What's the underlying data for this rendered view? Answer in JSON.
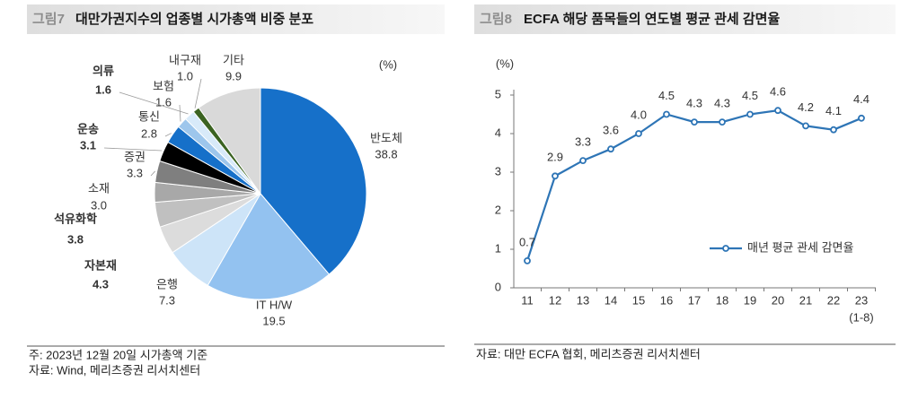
{
  "chart_data": [
    {
      "type": "pie",
      "label": "그림7",
      "title": "대만가권지수의 업종별 시가총액 비중 분포",
      "unit": "(%)",
      "categories": [
        "반도체",
        "IT H/W",
        "은행",
        "자본재",
        "석유화학",
        "소재",
        "증권",
        "운송",
        "통신",
        "보험",
        "의류",
        "내구재",
        "기타"
      ],
      "values": [
        38.8,
        19.5,
        7.3,
        4.3,
        3.8,
        3.0,
        3.3,
        3.1,
        2.8,
        1.6,
        1.6,
        1.0,
        9.9
      ],
      "value_labels": [
        "38.8",
        "19.5",
        "7.3",
        "4.3",
        "3.8",
        "3.0",
        "3.3",
        "3.1",
        "2.8",
        "1.6",
        "1.6",
        "1.0",
        "9.9"
      ],
      "colors": [
        "#1670c9",
        "#93c2f0",
        "#cde4f8",
        "#dcdcdc",
        "#c0c0c0",
        "#a8a8a8",
        "#7f7f7f",
        "#000000",
        "#1670c9",
        "#9dc6ec",
        "#d8eaf9",
        "#3b6321",
        "#d9d9d9"
      ],
      "notes": [
        "주: 2023년 12월 20일 시가총액 기준",
        "자료: Wind, 메리츠증권 리서치센터"
      ]
    },
    {
      "type": "line",
      "label": "그림8",
      "title": "ECFA 해당 품목들의 연도별 평균 관세 감면율",
      "y_label": "(%)",
      "categories": [
        "11",
        "12",
        "13",
        "14",
        "15",
        "16",
        "17",
        "18",
        "19",
        "20",
        "21",
        "22",
        "23"
      ],
      "x_note": "(1-8)",
      "series": [
        {
          "name": "매년 평균 관세 감면율",
          "color": "#2e75b6",
          "values": [
            0.7,
            2.9,
            3.3,
            3.6,
            4.0,
            4.5,
            4.3,
            4.3,
            4.5,
            4.6,
            4.2,
            4.1,
            4.4
          ],
          "value_labels": [
            "0.7",
            "2.9",
            "3.3",
            "3.6",
            "4.0",
            "4.5",
            "4.3",
            "4.3",
            "4.5",
            "4.6",
            "4.2",
            "4.1",
            "4.4"
          ]
        }
      ],
      "ylim": [
        0,
        5
      ],
      "yticks": [
        0,
        1,
        2,
        3,
        4,
        5
      ],
      "notes": [
        "자료: 대만 ECFA 협회, 메리츠증권 리서치센터"
      ]
    }
  ]
}
